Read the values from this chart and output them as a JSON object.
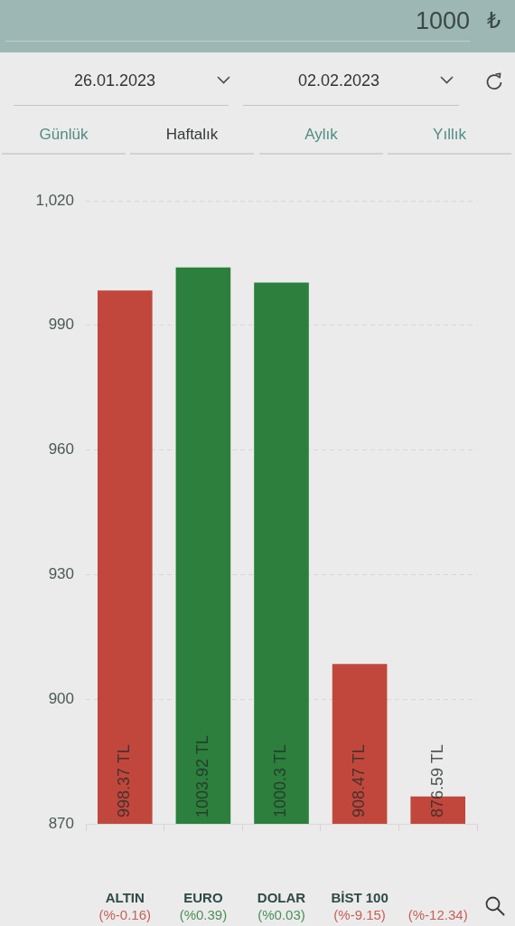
{
  "chart_data": {
    "type": "bar",
    "categories": [
      "ALTIN",
      "EURO",
      "DOLAR",
      "BİST 100",
      null
    ],
    "values": [
      998.37,
      1003.92,
      1000.3,
      908.47,
      876.59
    ],
    "colors": [
      "#c1473c",
      "#2c7f3c",
      "#2c7f3c",
      "#c1473c",
      "#c1473c"
    ],
    "ylim": [
      870,
      1020
    ],
    "yticks": [
      870,
      900,
      930,
      960,
      990,
      {
        "value": 1020,
        "label": "1,020"
      }
    ],
    "grid": "y",
    "legend": false,
    "value_labels": [
      "998.37 TL",
      "1003.92 TL",
      "1000.3 TL",
      "908.47 TL",
      "876.59 TL"
    ],
    "annotations": [
      "1000",
      "₺",
      "26.01.2023",
      "02.02.2023",
      "Günlük",
      "Haftalık",
      "Aylık",
      "Yıllık",
      "(%-0.16)",
      "(%0.39)",
      "(%0.03)",
      "(%-9.15)",
      "(%-12.34)"
    ]
  }
}
